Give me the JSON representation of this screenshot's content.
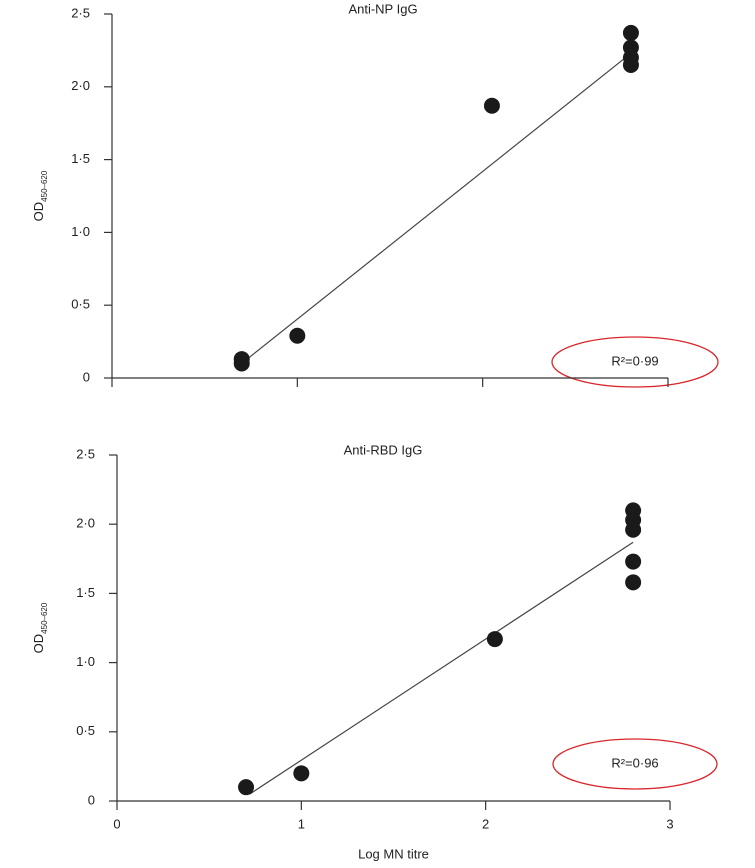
{
  "chart_data": [
    {
      "type": "scatter",
      "title": "Anti-NP IgG",
      "ylabel": "OD",
      "ylabel_subscript": "450–620",
      "annotation": "R²=0·99",
      "color": "#1a1a1a",
      "show_xtick_labels": false,
      "x": [
        0.7,
        0.7,
        1.0,
        2.05,
        2.8,
        2.8,
        2.8,
        2.8
      ],
      "values": [
        0.13,
        0.1,
        0.29,
        1.87,
        2.37,
        2.27,
        2.2,
        2.15
      ],
      "trendline": {
        "x": [
          0.7,
          2.8
        ],
        "y": [
          0.1,
          2.23
        ]
      },
      "xlim": [
        0,
        3
      ],
      "xticks": [
        0,
        1,
        2,
        3
      ],
      "ylim": [
        0,
        2.5
      ],
      "yticks": [
        0,
        {
          "value": 0.5,
          "label": "0·5"
        },
        {
          "value": 1.0,
          "label": "1·0"
        },
        {
          "value": 1.5,
          "label": "1·5"
        },
        {
          "value": 2.0,
          "label": "2·0"
        },
        {
          "value": 2.5,
          "label": "2·5"
        }
      ]
    },
    {
      "type": "scatter",
      "title": "Anti-RBD IgG",
      "ylabel": "OD",
      "ylabel_subscript": "450–620",
      "annotation": "R²=0·96",
      "color": "#1a1a1a",
      "show_xtick_labels": true,
      "xlabel": "Log MN titre",
      "x": [
        0.7,
        1.0,
        2.05,
        2.8,
        2.8,
        2.8,
        2.8,
        2.8
      ],
      "values": [
        0.1,
        0.2,
        1.17,
        2.1,
        2.03,
        1.96,
        1.73,
        1.58
      ],
      "trendline": {
        "x": [
          0.72,
          2.8
        ],
        "y": [
          0.05,
          1.87
        ]
      },
      "xlim": [
        0,
        3
      ],
      "xticks": [
        0,
        1,
        2,
        3
      ],
      "ylim": [
        0,
        2.5
      ],
      "yticks": [
        0,
        {
          "value": 0.5,
          "label": "0·5"
        },
        {
          "value": 1.0,
          "label": "1·0"
        },
        {
          "value": 1.5,
          "label": "1·5"
        },
        {
          "value": 2.0,
          "label": "2·0"
        },
        {
          "value": 2.5,
          "label": "2·5"
        }
      ]
    }
  ]
}
